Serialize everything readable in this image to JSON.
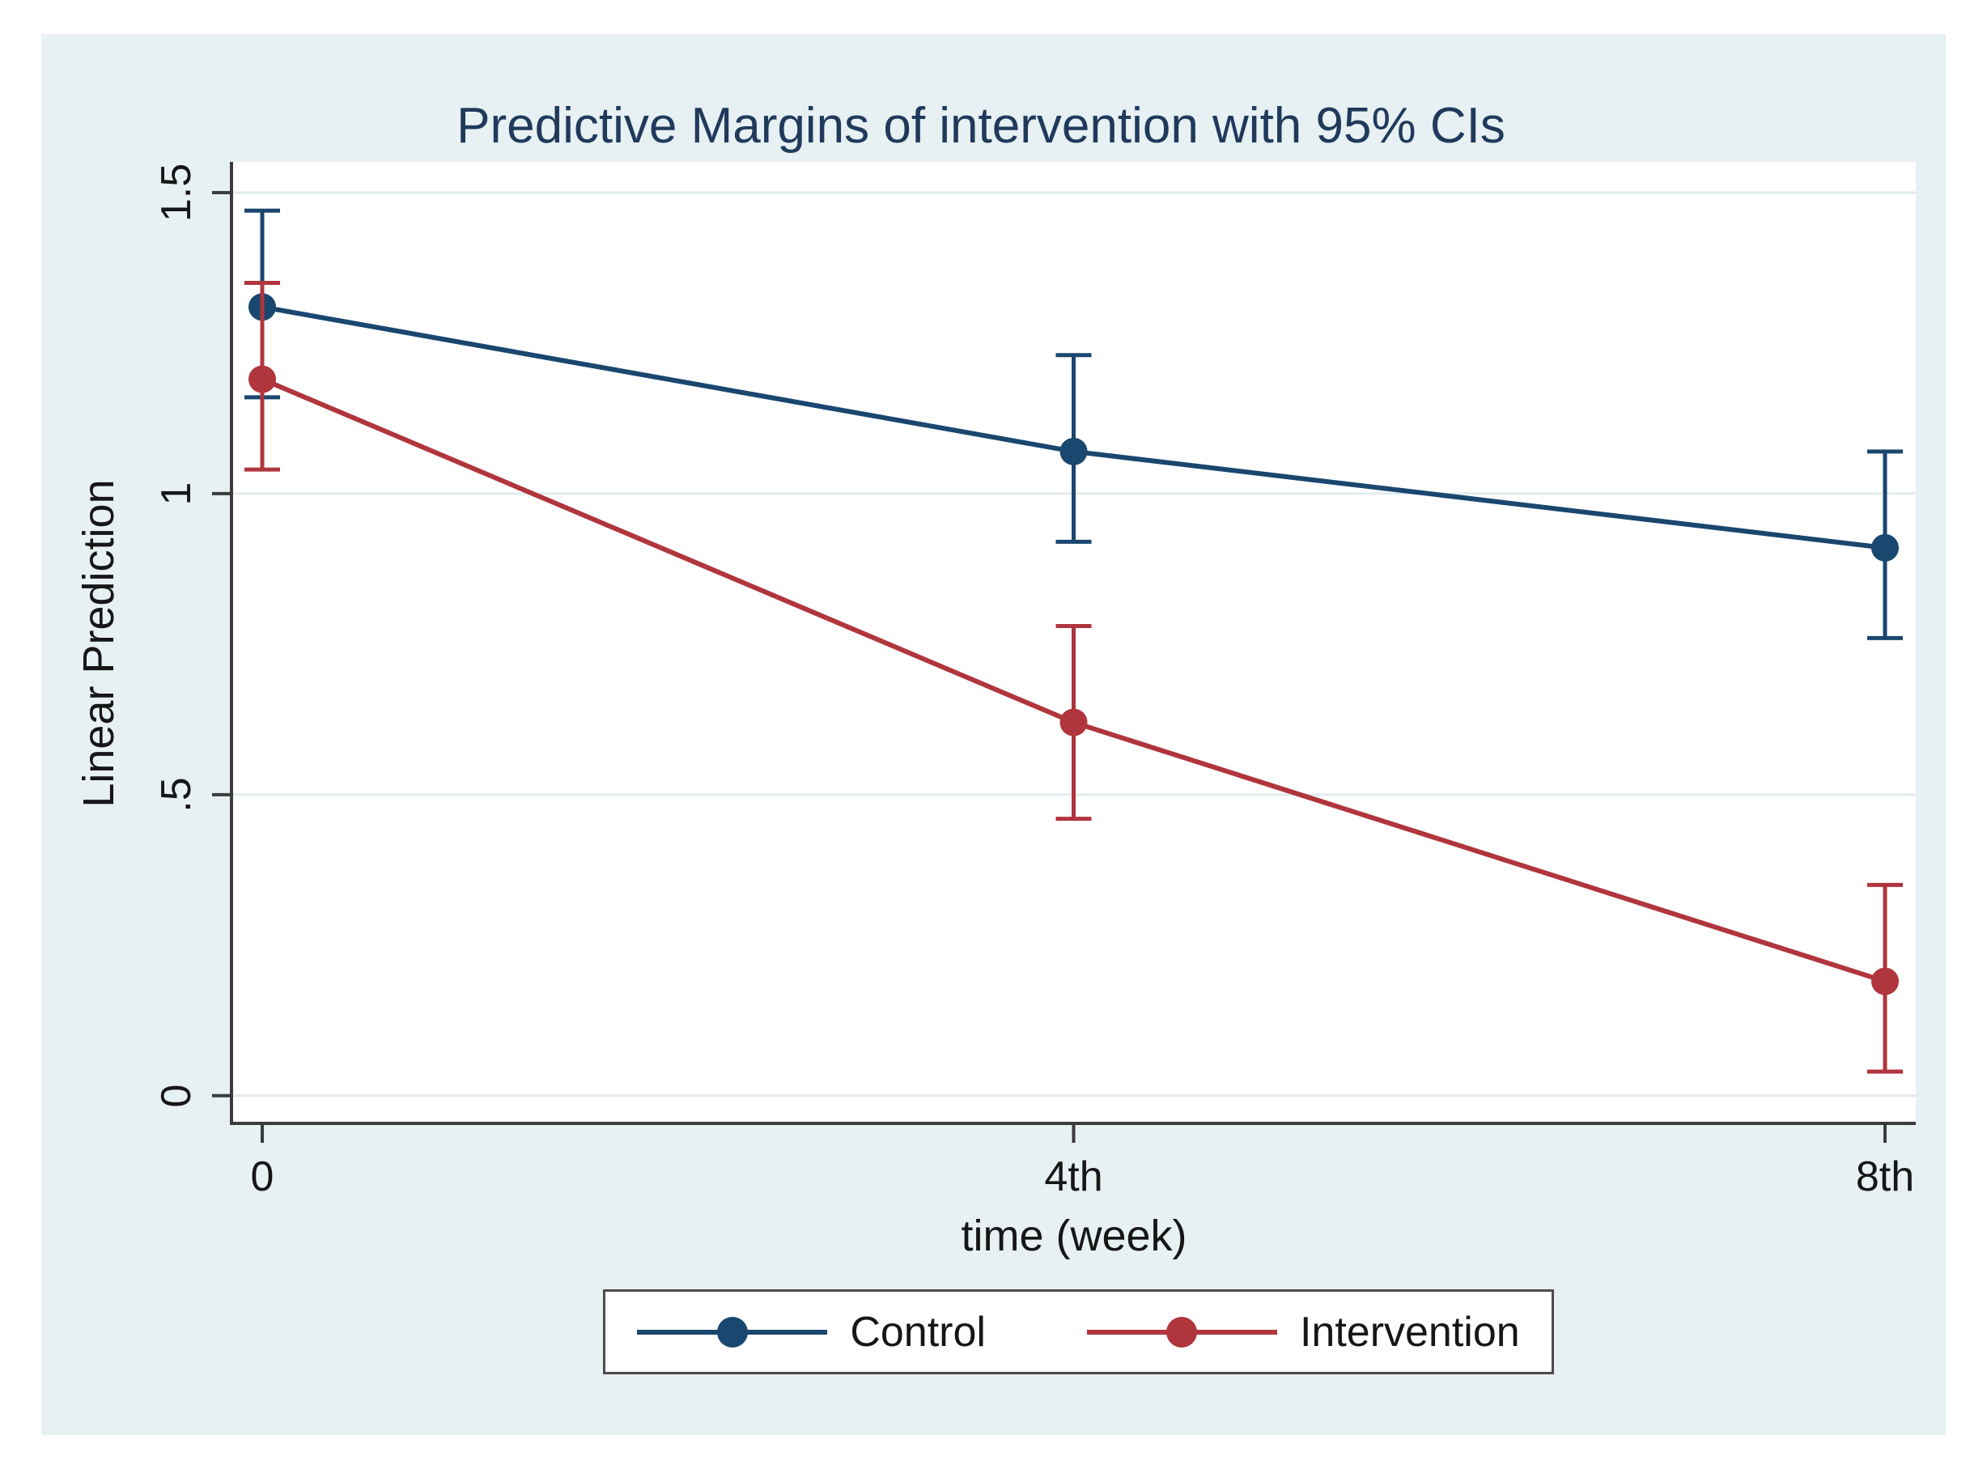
{
  "title": "Predictive Margins of intervention with 95% CIs",
  "colors": {
    "canvas_bg": "#e7f0f2",
    "plot_bg": "#ffffff",
    "gridline": "#e0ebee",
    "axis": "#3c3c3c",
    "title_text": "#203a5c",
    "tick_text": "#161616",
    "control": "#1a476f",
    "intervention": "#b0353d",
    "legend_border": "#4c4c4c",
    "legend_bg": "#ffffff"
  },
  "chart_data": {
    "type": "line",
    "title": "Predictive Margins of intervention with 95% CIs",
    "xlabel": "time (week)",
    "ylabel": "Linear Prediction",
    "x_categories": [
      "0",
      "4th",
      "8th"
    ],
    "y_ticks": [
      {
        "label": "1.5",
        "value": 1.5
      },
      {
        "label": "1",
        "value": 1.0
      },
      {
        "label": ".5",
        "value": 0.5
      },
      {
        "label": "0",
        "value": 0.0
      }
    ],
    "ylim": [
      -0.046,
      1.551
    ],
    "grid": true,
    "legend_position": "bottom",
    "error_bars": "95% CI",
    "series": [
      {
        "name": "Control",
        "color_key": "control",
        "values": [
          1.31,
          1.07,
          0.91
        ],
        "ci_low": [
          1.16,
          0.92,
          0.76
        ],
        "ci_high": [
          1.47,
          1.23,
          1.07
        ]
      },
      {
        "name": "Intervention",
        "color_key": "intervention",
        "values": [
          1.19,
          0.62,
          0.19
        ],
        "ci_low": [
          1.04,
          0.46,
          0.04
        ],
        "ci_high": [
          1.35,
          0.78,
          0.35
        ]
      }
    ]
  }
}
